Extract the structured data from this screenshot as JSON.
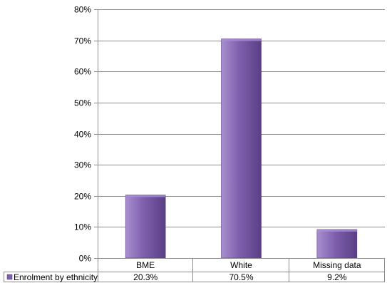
{
  "chart_data": {
    "type": "bar",
    "categories": [
      "BME",
      "White",
      "Missing data"
    ],
    "series": [
      {
        "name": "Enrolment by ethnicity",
        "values": [
          20.3,
          70.5,
          9.2
        ],
        "labels": [
          "20.3%",
          "70.5%",
          "9.2%"
        ],
        "color": "#7e5fad"
      }
    ],
    "ylim": [
      0,
      80
    ],
    "yticks": [
      0,
      10,
      20,
      30,
      40,
      50,
      60,
      70,
      80
    ],
    "ytick_labels": [
      "0%",
      "10%",
      "20%",
      "30%",
      "40%",
      "50%",
      "60%",
      "70%",
      "80%"
    ],
    "grid": true,
    "legend": "data-table-left",
    "title": "",
    "xlabel": "",
    "ylabel": ""
  },
  "colors": {
    "bar_light": "#a98fd0",
    "bar_main": "#7e5fad",
    "bar_dark": "#5a3f85",
    "grid": "#8c8c8c",
    "axis": "#8c8c8c"
  }
}
